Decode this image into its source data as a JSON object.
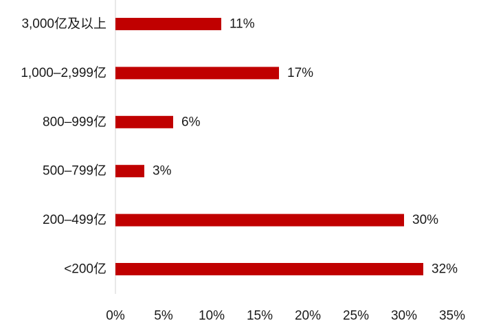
{
  "chart_data": {
    "type": "bar",
    "orientation": "horizontal",
    "categories": [
      "3,000亿及以上",
      "1,000–2,999亿",
      "800–999亿",
      "500–799亿",
      "200–499亿",
      "<200亿"
    ],
    "values": [
      11,
      17,
      6,
      3,
      30,
      32
    ],
    "value_labels": [
      "11%",
      "17%",
      "6%",
      "3%",
      "30%",
      "32%"
    ],
    "xlim": [
      0,
      35
    ],
    "x_ticks": [
      0,
      5,
      10,
      15,
      20,
      25,
      30,
      35
    ],
    "x_tick_labels": [
      "0%",
      "5%",
      "10%",
      "15%",
      "20%",
      "25%",
      "30%",
      "35%"
    ],
    "grid": false,
    "bar_color": "#c00000",
    "axis_color": "#d0d0d0"
  }
}
